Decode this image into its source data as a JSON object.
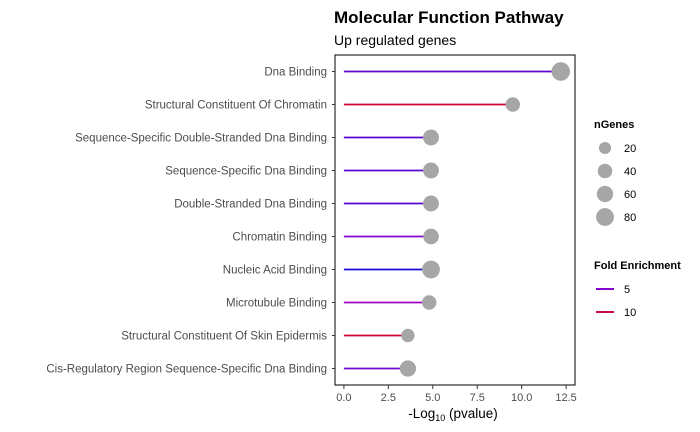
{
  "chart_data": {
    "type": "lollipop",
    "title": "Molecular Function Pathway",
    "subtitle": "Up regulated genes",
    "xlabel_main": "-Log",
    "xlabel_sub": "10",
    "xlabel_tail": " (pvalue)",
    "xlim": [
      -0.5,
      13.0
    ],
    "xticks": [
      0.0,
      2.5,
      5.0,
      7.5,
      10.0,
      12.5
    ],
    "xtick_labels": [
      "0.0",
      "2.5",
      "5.0",
      "7.5",
      "10.0",
      "12.5"
    ],
    "grid": false,
    "categories": [
      "Dna Binding",
      "Structural Constituent Of Chromatin",
      "Sequence-Specific Double-Stranded Dna Binding",
      "Sequence-Specific Dna Binding",
      "Double-Stranded Dna Binding",
      "Chromatin Binding",
      "Nucleic Acid Binding",
      "Microtubule Binding",
      "Structural Constituent Of Skin Epidermis",
      "Cis-Regulatory Region Sequence-Specific Dna Binding"
    ],
    "values": [
      12.2,
      9.5,
      4.9,
      4.9,
      4.9,
      4.9,
      4.9,
      4.8,
      3.6,
      3.6
    ],
    "n_genes": [
      90,
      40,
      55,
      55,
      55,
      52,
      80,
      40,
      30,
      60
    ],
    "fold_enrichment": [
      4.0,
      11.0,
      4.0,
      4.0,
      4.0,
      5.0,
      2.5,
      6.0,
      11.0,
      4.5
    ],
    "color_scale": {
      "low": "#1a0cd1",
      "mid": "#9b05cf",
      "high": "#d1062f",
      "domain": [
        2.5,
        5.5,
        11.0
      ]
    },
    "point_color": "#a6a6a6",
    "legend_size": {
      "title": "nGenes",
      "values": [
        20,
        40,
        60,
        80
      ],
      "labels": [
        "20",
        "40",
        "60",
        "80"
      ]
    },
    "legend_color": {
      "title": "Fold Enrichment",
      "values": [
        5,
        10
      ],
      "labels": [
        "5",
        "10"
      ]
    },
    "legend_position": "right"
  }
}
